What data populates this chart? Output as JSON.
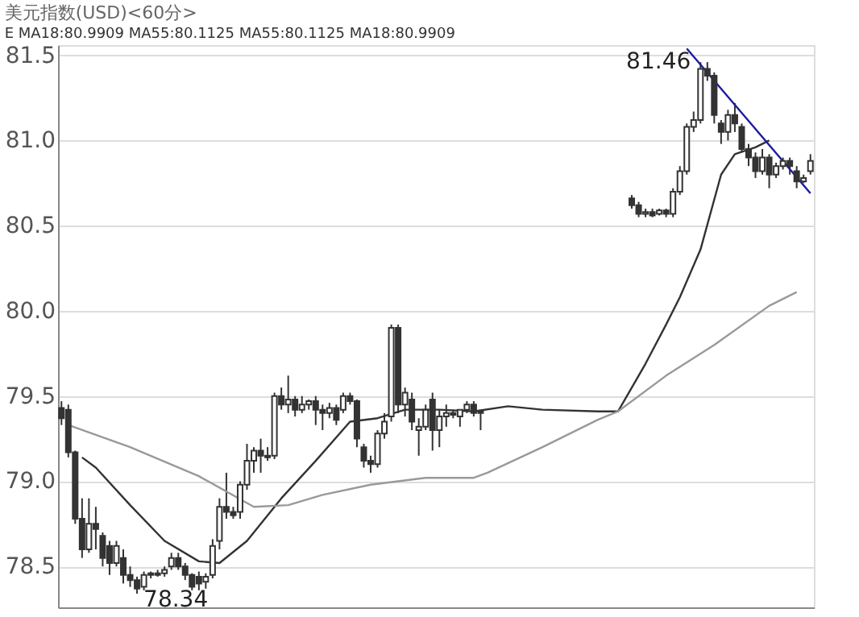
{
  "chart_data": {
    "type": "candlestick",
    "title": "美元指数(USD)<60分>",
    "subtitle": "E MA18:80.9909 MA55:80.1125 MA55:80.1125 MA18:80.9909",
    "color": "#333333",
    "categories": [
      null,
      null,
      null,
      null,
      null,
      null,
      null,
      null,
      null,
      null,
      null,
      null,
      null,
      null,
      null,
      null,
      null,
      null,
      null,
      null,
      null,
      null,
      null,
      null,
      null,
      null,
      null,
      null,
      null,
      null,
      null,
      null,
      null,
      null,
      null,
      null,
      null,
      null,
      null,
      null,
      null,
      null,
      null,
      null,
      null,
      null,
      null,
      null,
      null,
      null,
      null,
      null,
      null,
      null,
      null,
      null,
      null,
      null,
      null,
      null,
      null,
      null,
      null,
      null,
      null,
      null,
      null,
      null,
      null,
      null,
      null,
      null,
      null,
      null,
      null,
      null,
      null,
      null,
      null,
      null,
      null,
      null,
      null,
      null,
      null,
      null,
      null,
      null,
      null,
      null,
      null,
      null,
      null,
      null,
      null,
      null,
      null,
      null,
      null,
      null,
      null,
      null,
      null,
      null,
      null,
      null,
      null,
      null,
      null,
      null
    ],
    "ohlc": [
      [
        79.43,
        79.47,
        79.33,
        79.37
      ],
      [
        79.42,
        79.45,
        79.14,
        79.17
      ],
      [
        79.17,
        79.18,
        78.75,
        78.78
      ],
      [
        78.78,
        78.9,
        78.55,
        78.6
      ],
      [
        78.6,
        78.9,
        78.58,
        78.75
      ],
      [
        78.75,
        78.85,
        78.6,
        78.72
      ],
      [
        78.68,
        78.7,
        78.5,
        78.55
      ],
      [
        78.62,
        78.65,
        78.45,
        78.52
      ],
      [
        78.52,
        78.65,
        78.5,
        78.62
      ],
      [
        78.55,
        78.6,
        78.4,
        78.45
      ],
      [
        78.45,
        78.5,
        78.38,
        78.42
      ],
      [
        78.42,
        78.44,
        78.34,
        78.37
      ],
      [
        78.38,
        78.47,
        78.36,
        78.45
      ],
      [
        78.45,
        78.47,
        78.43,
        78.46
      ],
      [
        78.46,
        78.48,
        78.44,
        78.45
      ],
      [
        78.46,
        78.5,
        78.44,
        78.48
      ],
      [
        78.5,
        78.58,
        78.48,
        78.55
      ],
      [
        78.55,
        78.58,
        78.48,
        78.5
      ],
      [
        78.5,
        78.52,
        78.42,
        78.45
      ],
      [
        78.45,
        78.46,
        78.36,
        78.38
      ],
      [
        78.44,
        78.47,
        78.36,
        78.4
      ],
      [
        78.41,
        78.46,
        78.37,
        78.44
      ],
      [
        78.45,
        78.66,
        78.43,
        78.62
      ],
      [
        78.65,
        78.9,
        78.6,
        78.85
      ],
      [
        78.85,
        79.05,
        78.78,
        78.82
      ],
      [
        78.82,
        78.85,
        78.78,
        78.8
      ],
      [
        78.82,
        79.0,
        78.78,
        78.98
      ],
      [
        78.98,
        79.22,
        78.95,
        79.12
      ],
      [
        79.12,
        79.2,
        79.05,
        79.18
      ],
      [
        79.18,
        79.25,
        79.05,
        79.15
      ],
      [
        79.15,
        79.2,
        79.12,
        79.14
      ],
      [
        79.15,
        79.52,
        79.13,
        79.5
      ],
      [
        79.5,
        79.55,
        79.42,
        79.45
      ],
      [
        79.45,
        79.62,
        79.4,
        79.48
      ],
      [
        79.48,
        79.5,
        79.38,
        79.42
      ],
      [
        79.42,
        79.5,
        79.4,
        79.45
      ],
      [
        79.45,
        79.48,
        79.42,
        79.47
      ],
      [
        79.47,
        79.5,
        79.33,
        79.42
      ],
      [
        79.42,
        79.45,
        79.3,
        79.4
      ],
      [
        79.4,
        79.46,
        79.37,
        79.43
      ],
      [
        79.43,
        79.45,
        79.33,
        79.36
      ],
      [
        79.42,
        79.52,
        79.4,
        79.5
      ],
      [
        79.5,
        79.52,
        79.45,
        79.47
      ],
      [
        79.47,
        79.48,
        79.2,
        79.25
      ],
      [
        79.2,
        79.22,
        79.08,
        79.12
      ],
      [
        79.12,
        79.15,
        79.05,
        79.1
      ],
      [
        79.1,
        79.3,
        79.08,
        79.28
      ],
      [
        79.28,
        79.4,
        79.25,
        79.35
      ],
      [
        79.38,
        79.92,
        79.35,
        79.9
      ],
      [
        79.9,
        79.92,
        79.4,
        79.45
      ],
      [
        79.45,
        79.55,
        79.38,
        79.52
      ],
      [
        79.48,
        79.52,
        79.3,
        79.35
      ],
      [
        79.3,
        79.37,
        79.15,
        79.32
      ],
      [
        79.32,
        79.45,
        79.3,
        79.42
      ],
      [
        79.48,
        79.52,
        79.18,
        79.3
      ],
      [
        79.3,
        79.42,
        79.2,
        79.38
      ],
      [
        79.38,
        79.45,
        79.32,
        79.4
      ],
      [
        79.4,
        79.42,
        79.37,
        79.39
      ],
      [
        79.38,
        79.42,
        79.32,
        79.42
      ],
      [
        79.42,
        79.47,
        79.4,
        79.45
      ],
      [
        79.45,
        79.47,
        79.38,
        79.4
      ],
      [
        79.4,
        79.42,
        79.3,
        79.41
      ],
      null,
      null,
      null,
      null,
      null,
      null,
      null,
      null,
      null,
      null,
      null,
      null,
      null,
      null,
      null,
      null,
      null,
      null,
      null,
      null,
      null,
      [
        80.66,
        80.68,
        80.6,
        80.62
      ],
      [
        80.62,
        80.64,
        80.55,
        80.57
      ],
      [
        80.57,
        80.6,
        80.55,
        80.58
      ],
      [
        80.58,
        80.6,
        80.55,
        80.56
      ],
      [
        80.57,
        80.6,
        80.56,
        80.59
      ],
      [
        80.59,
        80.6,
        80.55,
        80.57
      ],
      [
        80.57,
        80.72,
        80.55,
        80.7
      ],
      [
        80.7,
        80.85,
        80.68,
        80.82
      ],
      [
        80.82,
        81.1,
        80.8,
        81.08
      ],
      [
        81.08,
        81.17,
        81.05,
        81.12
      ],
      [
        81.12,
        81.46,
        81.1,
        81.42
      ],
      [
        81.42,
        81.46,
        81.35,
        81.38
      ],
      [
        81.38,
        81.4,
        81.1,
        81.15
      ],
      [
        81.1,
        81.12,
        80.98,
        81.05
      ],
      [
        81.05,
        81.18,
        81.0,
        81.15
      ],
      [
        81.15,
        81.22,
        81.05,
        81.1
      ],
      [
        81.08,
        81.1,
        80.93,
        80.95
      ],
      [
        80.95,
        80.98,
        80.85,
        80.9
      ],
      [
        80.9,
        80.93,
        80.78,
        80.82
      ],
      [
        80.82,
        80.95,
        80.8,
        80.9
      ],
      [
        80.9,
        80.92,
        80.72,
        80.8
      ],
      [
        80.8,
        80.87,
        80.78,
        80.85
      ],
      [
        80.85,
        80.9,
        80.83,
        80.88
      ],
      [
        80.88,
        80.9,
        80.8,
        80.85
      ],
      [
        80.82,
        80.85,
        80.72,
        80.76
      ],
      [
        80.76,
        80.8,
        80.75,
        80.78
      ],
      [
        80.82,
        80.92,
        80.8,
        80.88
      ]
    ],
    "series": [
      {
        "type": "line",
        "color": "#333333",
        "values": [
          null,
          null,
          null,
          79.14,
          null,
          79.08,
          null,
          null,
          null,
          null,
          78.86,
          null,
          null,
          null,
          null,
          78.65,
          null,
          null,
          null,
          null,
          78.53,
          null,
          null,
          78.52,
          null,
          null,
          null,
          78.65,
          null,
          null,
          null,
          null,
          78.9,
          null,
          null,
          null,
          null,
          79.12,
          null,
          null,
          null,
          null,
          79.35,
          null,
          null,
          null,
          79.37,
          null,
          null,
          null,
          79.42,
          null,
          null,
          null,
          null,
          79.42,
          null,
          null,
          null,
          null,
          79.41,
          null,
          null,
          null,
          null,
          79.44,
          null,
          null,
          null,
          null,
          79.42,
          null,
          null,
          null,
          null,
          null,
          null,
          null,
          79.41,
          null,
          null,
          79.41,
          null,
          null,
          null,
          79.69,
          null,
          null,
          79.92,
          null,
          80.08,
          null,
          null,
          80.36,
          null,
          null,
          80.8,
          null,
          80.92,
          null,
          null,
          80.96,
          null,
          81.0,
          null,
          null,
          null,
          null,
          null,
          null
        ]
      },
      {
        "type": "line",
        "color": "#999999",
        "values": [
          null,
          79.33,
          null,
          null,
          null,
          null,
          null,
          null,
          null,
          null,
          79.2,
          null,
          null,
          null,
          null,
          null,
          null,
          null,
          null,
          null,
          79.03,
          null,
          null,
          null,
          null,
          null,
          null,
          null,
          78.85,
          null,
          null,
          null,
          null,
          78.86,
          null,
          null,
          null,
          null,
          78.92,
          null,
          null,
          null,
          null,
          null,
          null,
          78.98,
          null,
          null,
          null,
          null,
          null,
          null,
          null,
          79.02,
          null,
          null,
          null,
          null,
          null,
          null,
          79.02,
          null,
          79.05,
          null,
          null,
          null,
          null,
          null,
          null,
          null,
          79.2,
          null,
          null,
          null,
          null,
          null,
          null,
          null,
          79.36,
          null,
          null,
          79.41,
          null,
          null,
          null,
          null,
          null,
          null,
          79.62,
          null,
          null,
          null,
          null,
          null,
          null,
          79.8,
          null,
          null,
          null,
          null,
          null,
          null,
          null,
          80.03,
          null,
          null,
          null,
          80.11,
          null,
          null
        ]
      },
      {
        "type": "line",
        "color": "#1c1c9c",
        "values": [
          null,
          null,
          null,
          null,
          null,
          null,
          null,
          null,
          null,
          null,
          null,
          null,
          null,
          null,
          null,
          null,
          null,
          null,
          null,
          null,
          null,
          null,
          null,
          null,
          null,
          null,
          null,
          null,
          null,
          null,
          null,
          null,
          null,
          null,
          null,
          null,
          null,
          null,
          null,
          null,
          null,
          null,
          null,
          null,
          null,
          null,
          null,
          null,
          null,
          null,
          null,
          null,
          null,
          null,
          null,
          null,
          null,
          null,
          null,
          null,
          null,
          null,
          null,
          null,
          null,
          null,
          null,
          null,
          null,
          null,
          null,
          null,
          null,
          null,
          null,
          null,
          null,
          null,
          null,
          null,
          null,
          null,
          null,
          null,
          null,
          null,
          null,
          null,
          null,
          null,
          null,
          81.54,
          null,
          null,
          null,
          null,
          null,
          null,
          null,
          null,
          null,
          null,
          null,
          null,
          null,
          null,
          null,
          null,
          null,
          80.69
        ]
      }
    ],
    "annotations": [
      "81.46",
      "78.34"
    ],
    "ylim": [
      78.26,
      81.56
    ],
    "yticks": [
      {
        "value": 78.5,
        "label": "78.5"
      },
      {
        "value": 79.0,
        "label": "79.0"
      },
      {
        "value": 79.5,
        "label": "79.5"
      },
      {
        "value": 80.0,
        "label": "80.0"
      },
      {
        "value": 80.5,
        "label": "80.5"
      },
      {
        "value": 81.0,
        "label": "81.0"
      },
      {
        "value": 81.5,
        "label": "81.5"
      }
    ],
    "grid": "y",
    "tick_labels": "y"
  }
}
